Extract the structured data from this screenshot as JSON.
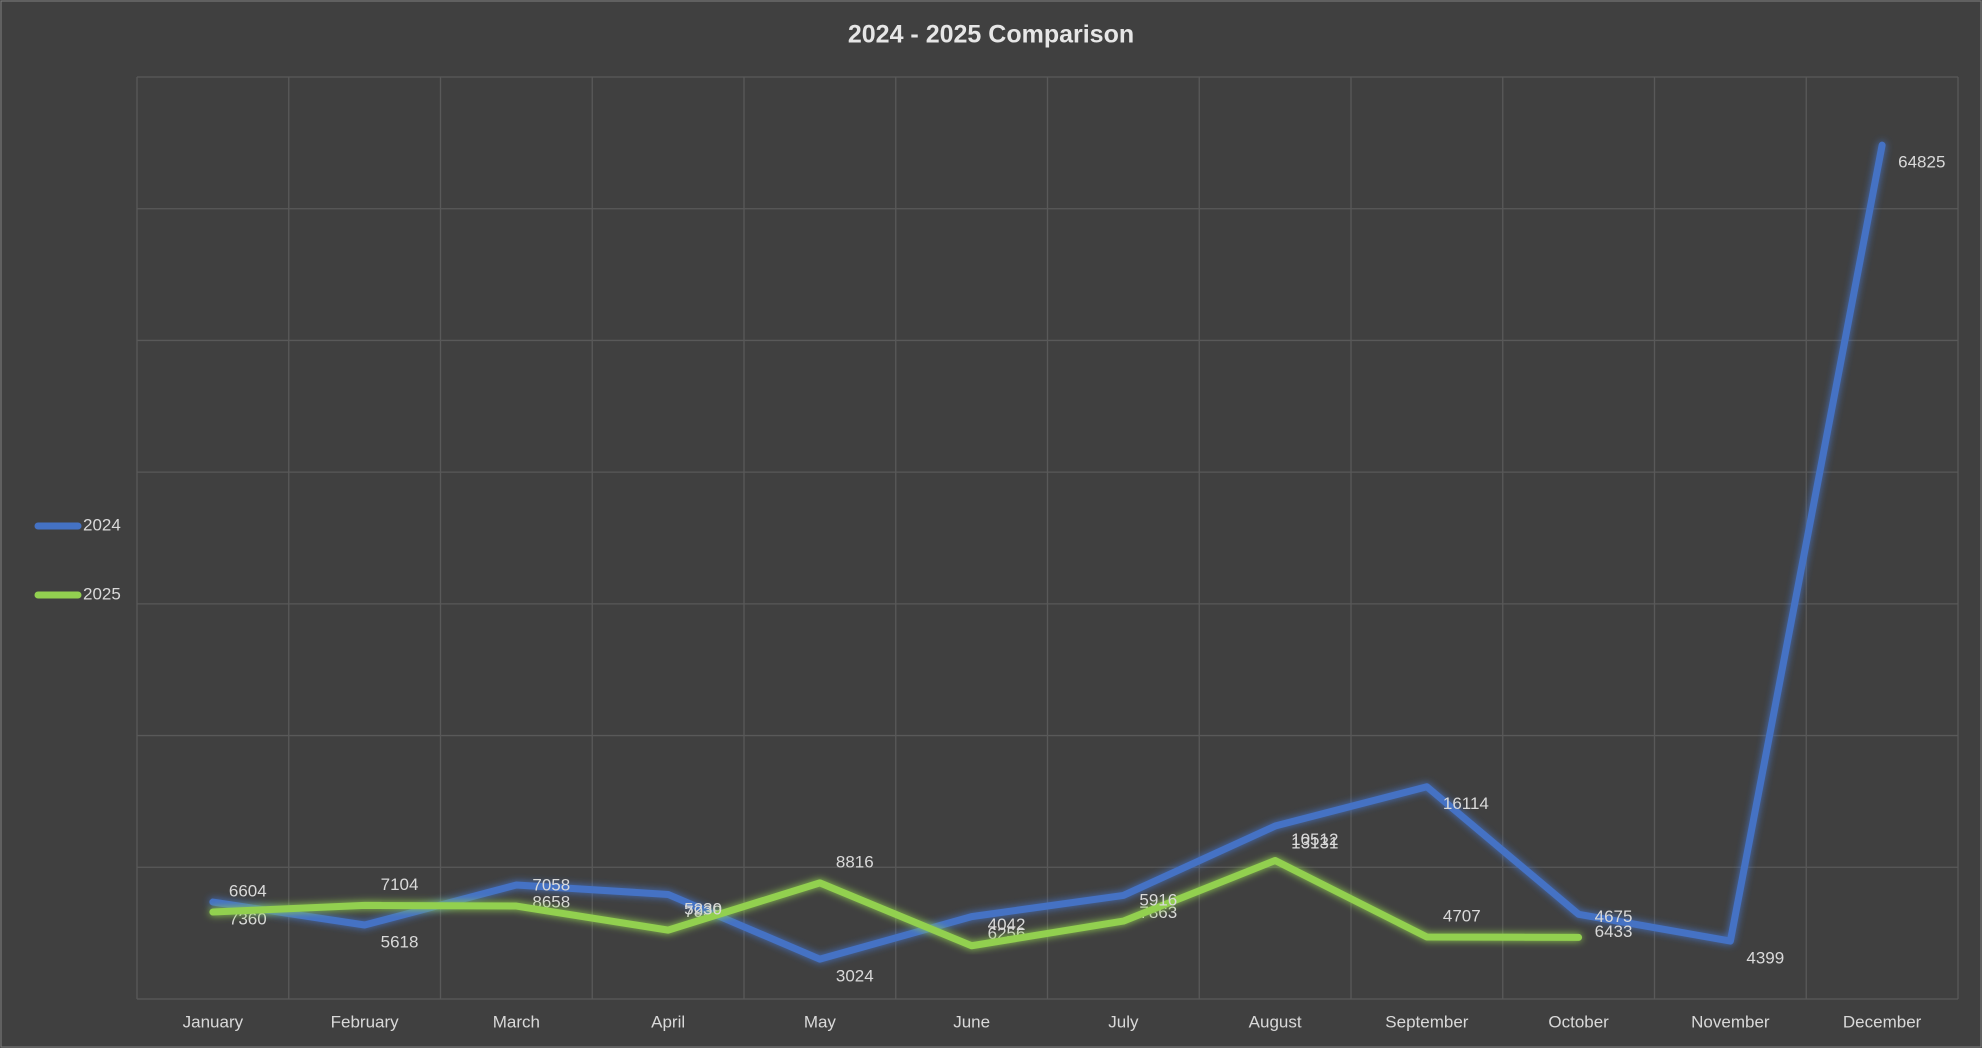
{
  "chart_data": {
    "type": "line",
    "title": "2024 - 2025 Comparison",
    "categories": [
      "January",
      "February",
      "March",
      "April",
      "May",
      "June",
      "July",
      "August",
      "September",
      "October",
      "November",
      "December"
    ],
    "series": [
      {
        "name": "2024",
        "color": "#4472c4",
        "values": [
          7360,
          5618,
          8658,
          7938,
          3024,
          6256,
          7863,
          13131,
          16114,
          6433,
          4399,
          64825
        ]
      },
      {
        "name": "2025",
        "color": "#92d050",
        "values": [
          6604,
          7104,
          7058,
          5230,
          8816,
          4042,
          5916,
          10512,
          4707,
          4675,
          null,
          null
        ]
      }
    ],
    "ylim": [
      0,
      70000
    ],
    "yticks": [
      0,
      10000,
      20000,
      30000,
      40000,
      50000,
      60000,
      70000
    ],
    "grid": true,
    "legend": "left"
  }
}
